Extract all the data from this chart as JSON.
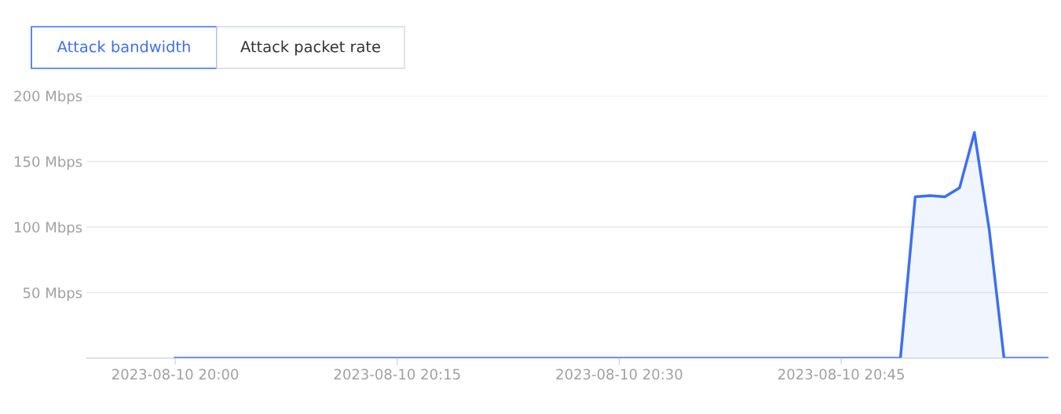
{
  "chart_data": {
    "type": "area",
    "annotations": [
      "Attack bandwidth",
      "Attack packet rate"
    ],
    "x": [
      "2023-08-10T20:00",
      "2023-08-10T20:01",
      "2023-08-10T20:02",
      "2023-08-10T20:03",
      "2023-08-10T20:04",
      "2023-08-10T20:05",
      "2023-08-10T20:06",
      "2023-08-10T20:07",
      "2023-08-10T20:08",
      "2023-08-10T20:09",
      "2023-08-10T20:10",
      "2023-08-10T20:11",
      "2023-08-10T20:12",
      "2023-08-10T20:13",
      "2023-08-10T20:14",
      "2023-08-10T20:15",
      "2023-08-10T20:16",
      "2023-08-10T20:17",
      "2023-08-10T20:18",
      "2023-08-10T20:19",
      "2023-08-10T20:20",
      "2023-08-10T20:21",
      "2023-08-10T20:22",
      "2023-08-10T20:23",
      "2023-08-10T20:24",
      "2023-08-10T20:25",
      "2023-08-10T20:26",
      "2023-08-10T20:27",
      "2023-08-10T20:28",
      "2023-08-10T20:29",
      "2023-08-10T20:30",
      "2023-08-10T20:31",
      "2023-08-10T20:32",
      "2023-08-10T20:33",
      "2023-08-10T20:34",
      "2023-08-10T20:35",
      "2023-08-10T20:36",
      "2023-08-10T20:37",
      "2023-08-10T20:38",
      "2023-08-10T20:39",
      "2023-08-10T20:40",
      "2023-08-10T20:41",
      "2023-08-10T20:42",
      "2023-08-10T20:43",
      "2023-08-10T20:44",
      "2023-08-10T20:45",
      "2023-08-10T20:46",
      "2023-08-10T20:47",
      "2023-08-10T20:48",
      "2023-08-10T20:49",
      "2023-08-10T20:50",
      "2023-08-10T20:51",
      "2023-08-10T20:52",
      "2023-08-10T20:53",
      "2023-08-10T20:54",
      "2023-08-10T20:55",
      "2023-08-10T20:56",
      "2023-08-10T20:57",
      "2023-08-10T20:58",
      "2023-08-10T20:59"
    ],
    "series": [
      {
        "color": "#3d6ff0",
        "values": [
          0,
          0,
          0,
          0,
          0,
          0,
          0,
          0,
          0,
          0,
          0,
          0,
          0,
          0,
          0,
          0,
          0,
          0,
          0,
          0,
          0,
          0,
          0,
          0,
          0,
          0,
          0,
          0,
          0,
          0,
          0,
          0,
          0,
          0,
          0,
          0,
          0,
          0,
          0,
          0,
          0,
          0,
          0,
          0,
          0,
          0,
          0,
          0,
          0,
          0,
          123,
          124,
          123,
          130,
          172,
          98,
          0,
          0,
          0,
          0
        ]
      }
    ],
    "xlim": [
      "2023-08-10T19:54",
      "2023-08-10T20:59"
    ],
    "xticks": [
      {
        "value": "2023-08-10T20:00",
        "label": "2023-08-10 20:00"
      },
      {
        "value": "2023-08-10T20:15",
        "label": "2023-08-10 20:15"
      },
      {
        "value": "2023-08-10T20:30",
        "label": "2023-08-10 20:30"
      },
      {
        "value": "2023-08-10T20:45",
        "label": "2023-08-10 20:45"
      }
    ],
    "ylim": [
      0,
      200
    ],
    "yticks": [
      {
        "value": 0,
        "label": null
      },
      {
        "value": 50,
        "label": "50 Mbps"
      },
      {
        "value": 100,
        "label": "100 Mbps"
      },
      {
        "value": 150,
        "label": "150 Mbps"
      },
      {
        "value": 200,
        "label": "200 Mbps"
      }
    ],
    "grid": "y"
  }
}
